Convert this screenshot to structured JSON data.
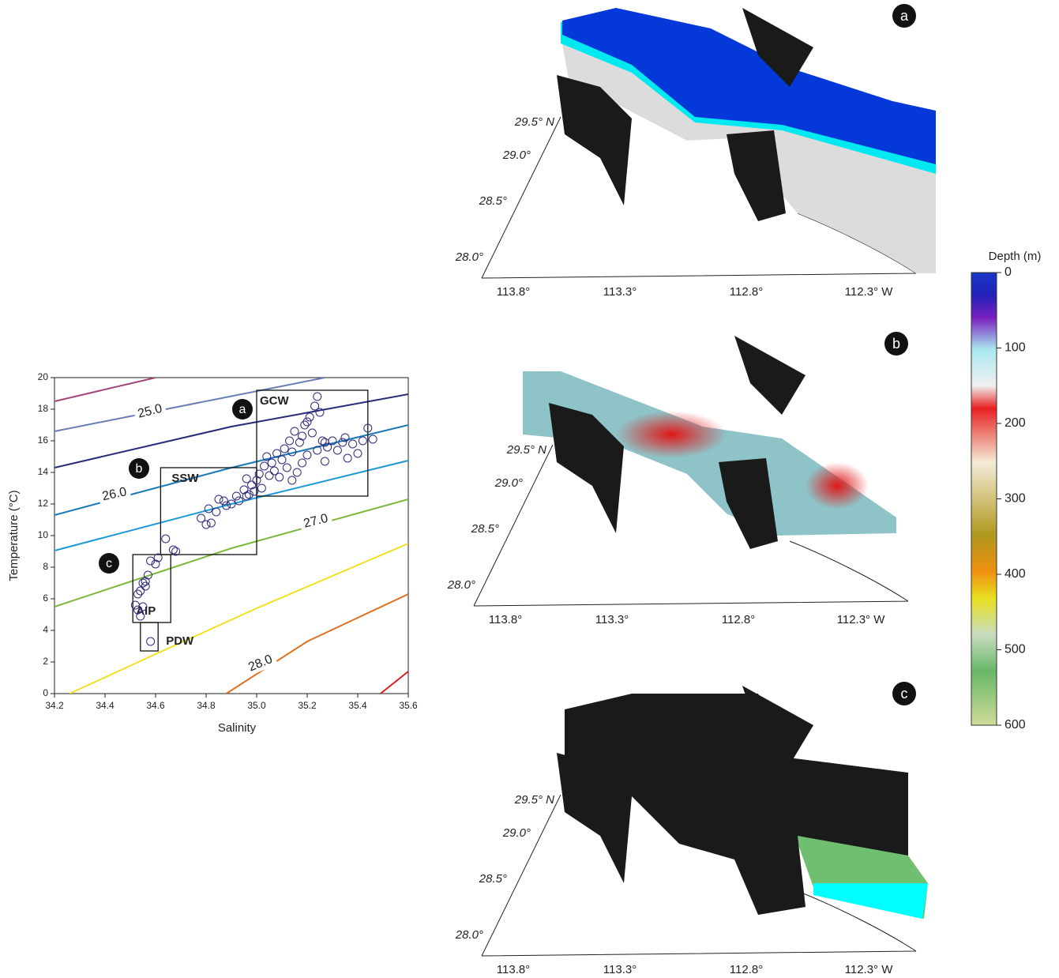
{
  "chart_data": {
    "type": "scatter",
    "xlabel": "Salinity",
    "ylabel": "Temperature (°C)",
    "xlim": [
      34.2,
      35.6
    ],
    "ylim": [
      0,
      20
    ],
    "xticks": [
      34.2,
      34.4,
      34.6,
      34.8,
      {
        "value": 35,
        "label": "35.0"
      },
      35.2,
      35.4,
      35.6
    ],
    "yticks": [
      0,
      2,
      4,
      6,
      8,
      10,
      12,
      14,
      16,
      18,
      20
    ],
    "color": "#2d2a7a",
    "x": [
      34.58,
      34.52,
      34.53,
      34.54,
      34.55,
      34.53,
      34.54,
      34.55,
      34.56,
      34.56,
      34.57,
      34.58,
      34.6,
      34.61,
      34.64,
      34.67,
      34.68,
      34.78,
      34.8,
      34.82,
      34.81,
      34.84,
      34.85,
      34.87,
      34.88,
      34.9,
      34.92,
      34.93,
      34.95,
      34.96,
      34.97,
      34.98,
      34.99,
      34.96,
      35.0,
      35.01,
      35.02,
      35.03,
      35.04,
      35.05,
      35.06,
      35.07,
      35.08,
      35.09,
      35.1,
      35.11,
      35.12,
      35.13,
      35.14,
      35.15,
      35.16,
      35.17,
      35.18,
      35.19,
      35.2,
      35.21,
      35.22,
      35.23,
      35.24,
      35.25,
      35.26,
      35.27,
      35.28,
      35.3,
      35.32,
      35.34,
      35.35,
      35.36,
      35.38,
      35.4,
      35.42,
      35.44,
      35.46,
      35.2,
      35.18,
      35.14,
      35.24,
      35.27
    ],
    "values": [
      3.3,
      5.6,
      5.3,
      4.9,
      5.5,
      6.3,
      6.5,
      7.0,
      6.8,
      7.1,
      7.5,
      8.4,
      8.2,
      8.6,
      9.8,
      9.1,
      9.0,
      11.1,
      10.7,
      10.8,
      11.7,
      11.5,
      12.3,
      12.2,
      11.9,
      12.0,
      12.5,
      12.2,
      12.9,
      13.6,
      12.6,
      13.2,
      12.8,
      12.5,
      13.5,
      13.9,
      13.0,
      14.4,
      15.0,
      13.8,
      14.6,
      14.1,
      15.2,
      13.7,
      14.8,
      15.5,
      14.3,
      16.0,
      15.3,
      16.6,
      14.0,
      15.9,
      16.3,
      17.0,
      15.1,
      17.5,
      16.5,
      18.2,
      18.8,
      17.8,
      16.0,
      14.7,
      15.6,
      16.0,
      15.4,
      15.9,
      16.2,
      14.9,
      15.8,
      15.2,
      16.0,
      16.8,
      16.1,
      17.2,
      14.6,
      13.5,
      15.4,
      15.9
    ],
    "contours": [
      {
        "color": "#a0447a",
        "x": [
          34.2,
          34.6
        ],
        "y": [
          18.5,
          20
        ]
      },
      {
        "label": "25.0",
        "color": "#6a7cb8",
        "x": [
          34.2,
          35.27
        ],
        "y": [
          16.6,
          20
        ]
      },
      {
        "color": "#262a78",
        "x": [
          34.2,
          34.9,
          35.6
        ],
        "y": [
          14.3,
          16.9,
          18.95
        ]
      },
      {
        "label": "26.0",
        "color": "#1a7ab8",
        "x": [
          34.2,
          34.9,
          35.6
        ],
        "y": [
          11.3,
          14.3,
          17.0
        ]
      },
      {
        "color": "#1a98d8",
        "x": [
          34.2,
          34.9,
          35.6
        ],
        "y": [
          9.05,
          12.0,
          14.75
        ]
      },
      {
        "label": "27.0",
        "color": "#7ab838",
        "x": [
          34.2,
          34.9,
          35.6
        ],
        "y": [
          5.5,
          9.2,
          12.3
        ]
      },
      {
        "color": "#f0e020",
        "x": [
          34.26,
          34.6,
          35.0,
          35.6
        ],
        "y": [
          0,
          2.5,
          5.4,
          9.5
        ]
      },
      {
        "label": "28.0",
        "color": "#e07020",
        "x": [
          34.88,
          35.2,
          35.6
        ],
        "y": [
          0,
          3.3,
          6.3
        ]
      },
      {
        "color": "#d82020",
        "x": [
          35.49,
          35.6
        ],
        "y": [
          0,
          1.4
        ]
      }
    ],
    "regions": [
      {
        "name": "GCW",
        "badge": "a",
        "x": [
          35.0,
          35.44
        ],
        "y": [
          12.5,
          19.2
        ]
      },
      {
        "name": "SSW",
        "badge": "b",
        "x": [
          34.62,
          35.0
        ],
        "y": [
          8.8,
          14.3
        ]
      },
      {
        "name": "AIP",
        "badge": "c",
        "x": [
          34.51,
          34.66
        ],
        "y": [
          4.5,
          8.8
        ]
      },
      {
        "name": "PDW",
        "x": [
          34.54,
          34.61
        ],
        "y": [
          2.7,
          4.5
        ]
      }
    ]
  },
  "colorbar": {
    "label": "Depth (m)",
    "lim": [
      0,
      600
    ],
    "ticks": [
      0,
      100,
      200,
      300,
      400,
      500,
      600
    ]
  },
  "maps": [
    {
      "badge": "a",
      "lat_labels": [
        "29.5° N",
        "29.0°",
        "28.5°",
        "28.0°"
      ],
      "lon_labels": [
        "113.8°",
        "113.3°",
        "112.8°",
        "112.3° W"
      ]
    },
    {
      "badge": "b",
      "lat_labels": [
        "29.5° N",
        "29.0°",
        "28.5°",
        "28.0°"
      ],
      "lon_labels": [
        "113.8°",
        "113.3°",
        "112.8°",
        "112.3° W"
      ]
    },
    {
      "badge": "c",
      "lat_labels": [
        "29.5° N",
        "29.0°",
        "28.5°",
        "28.0°"
      ],
      "lon_labels": [
        "113.8°",
        "113.3°",
        "112.8°",
        "112.3° W"
      ]
    }
  ]
}
